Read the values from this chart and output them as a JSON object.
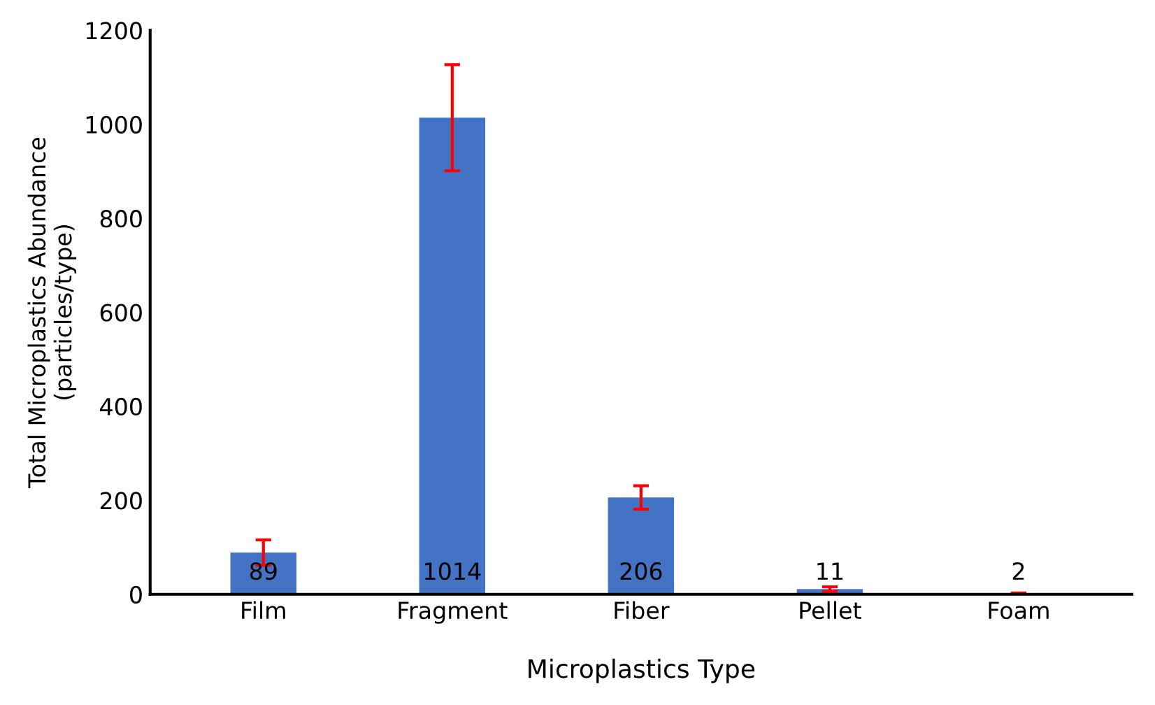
{
  "chart_data": {
    "type": "bar",
    "xlabel": "Microplastics Type",
    "ylabel": "Total Microplastics Abundance\n(particles/type)",
    "categories": [
      "Film",
      "Fragment",
      "Fiber",
      "Pellet",
      "Foam"
    ],
    "values": [
      89,
      1014,
      206,
      11,
      2
    ],
    "errors": [
      27,
      113,
      25,
      5,
      1
    ],
    "color": "#4472c4",
    "ylim": [
      0,
      1200
    ],
    "yticks": [
      0,
      200,
      400,
      600,
      800,
      1000,
      1200
    ],
    "data_labels": true,
    "grid": false
  }
}
